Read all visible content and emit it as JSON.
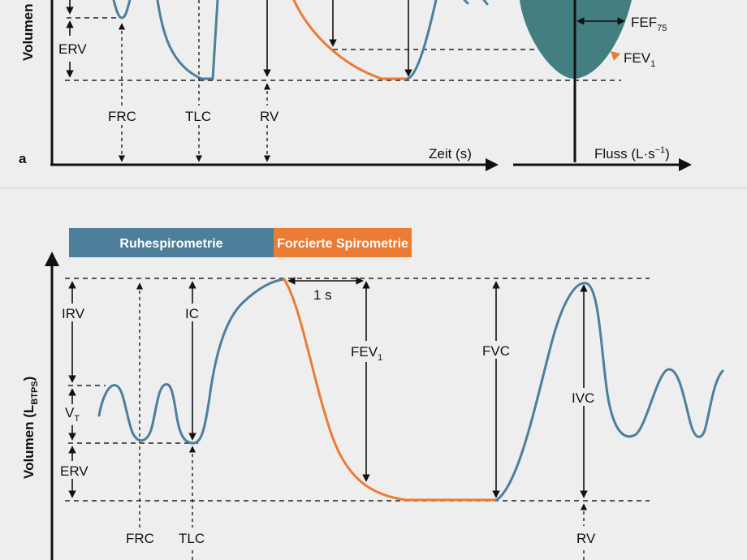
{
  "panel_a": {
    "letter": "a",
    "ylabel": "Volumen",
    "labels": {
      "erv": "ERV",
      "frc": "FRC",
      "tlc": "TLC",
      "rv": "RV",
      "time_axis": "Zeit (s)",
      "flow_axis_main": "Fluss (L·s",
      "flow_axis_sup": "−1",
      "flow_axis_close": ")",
      "fef_main": "FEF",
      "fef_sub": "75",
      "fev_main": "FEV",
      "fev_sub": "1"
    }
  },
  "panel_b": {
    "banner_rest": "Ruhespirometrie",
    "banner_forced": "Forcierte Spirometrie",
    "ylabel_main": "Volumen (L",
    "ylabel_sub": "BTPS",
    "ylabel_close": ")",
    "labels": {
      "irv": "IRV",
      "ic": "IC",
      "vt_main": "V",
      "vt_sub": "T",
      "erv": "ERV",
      "frc": "FRC",
      "tlc": "TLC",
      "one_s": "1 s",
      "fev_main": "FEV",
      "fev_sub": "1",
      "fvc": "FVC",
      "ivc": "IVC",
      "rv": "RV"
    }
  },
  "colors": {
    "background": "#eeeeee",
    "curve_blue": "#4d7f9b",
    "curve_orange": "#ec7b33",
    "loop_fill": "#437e80",
    "banner_blue": "#4d7f9b",
    "banner_orange": "#ec7b33"
  }
}
